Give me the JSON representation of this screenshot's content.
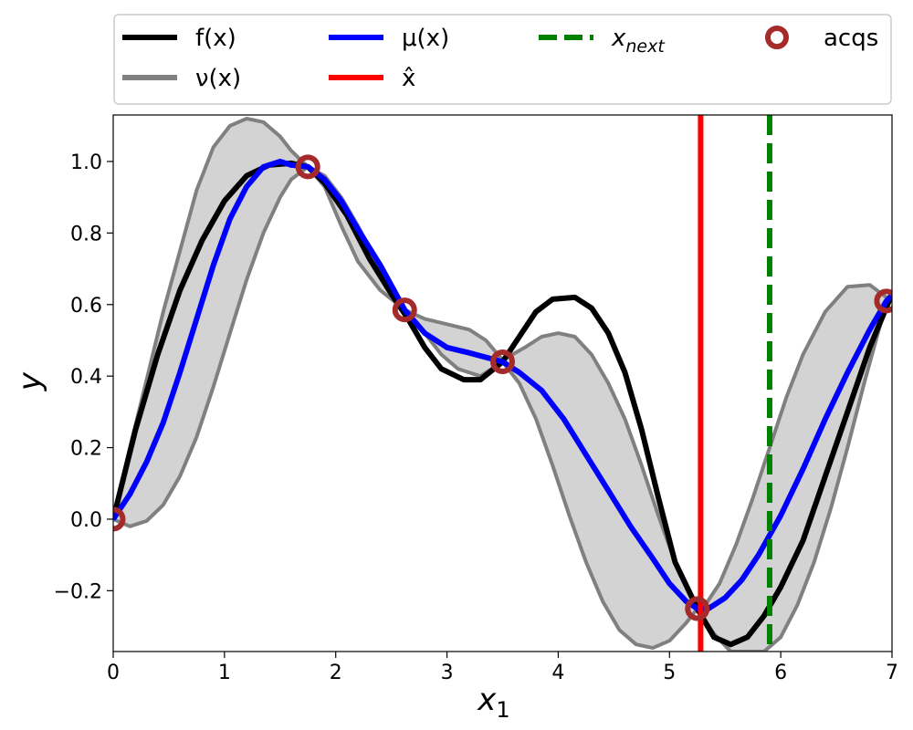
{
  "chart_data": {
    "type": "line",
    "xlabel": "x",
    "xlabel_sub": "1",
    "ylabel": "y",
    "xlim": [
      0,
      7
    ],
    "ylim": [
      -0.37,
      1.13
    ],
    "x_ticks": [
      0,
      1,
      2,
      3,
      4,
      5,
      6,
      7
    ],
    "x_tick_labels": [
      "0",
      "1",
      "2",
      "3",
      "4",
      "5",
      "6",
      "7"
    ],
    "y_ticks": [
      -0.2,
      0.0,
      0.2,
      0.4,
      0.6,
      0.8,
      1.0
    ],
    "y_tick_labels": [
      "−0.2",
      "0.0",
      "0.2",
      "0.4",
      "0.6",
      "0.8",
      "1.0"
    ],
    "grid": false,
    "legend_position": "top",
    "legend": [
      {
        "label": "f(x)",
        "style": "line",
        "color": "#000000"
      },
      {
        "label": "μ(x)",
        "style": "line",
        "color": "#0000ff"
      },
      {
        "label": "x",
        "label_sub": "next",
        "style": "dashed",
        "color": "#008000"
      },
      {
        "label": "acqs",
        "style": "ring",
        "color": "#a52a2a"
      },
      {
        "label": "ν(x)",
        "style": "line",
        "color": "#808080"
      },
      {
        "label": "x̂",
        "style": "line",
        "color": "#ff0000"
      }
    ],
    "series": [
      {
        "name": "f(x)",
        "color": "#000000",
        "x": [
          0,
          0.2,
          0.4,
          0.6,
          0.8,
          1.0,
          1.2,
          1.4,
          1.6,
          1.75,
          1.9,
          2.1,
          2.3,
          2.5,
          2.65,
          2.8,
          2.95,
          3.15,
          3.3,
          3.5,
          3.65,
          3.8,
          3.95,
          4.15,
          4.3,
          4.45,
          4.6,
          4.75,
          4.9,
          5.05,
          5.25,
          5.4,
          5.55,
          5.7,
          5.85,
          6.0,
          6.2,
          6.4,
          6.6,
          6.8,
          7.0
        ],
        "y": [
          0.0,
          0.25,
          0.46,
          0.64,
          0.78,
          0.89,
          0.96,
          0.99,
          0.995,
          0.985,
          0.94,
          0.85,
          0.73,
          0.63,
          0.56,
          0.48,
          0.42,
          0.39,
          0.39,
          0.44,
          0.51,
          0.58,
          0.615,
          0.62,
          0.59,
          0.52,
          0.41,
          0.25,
          0.06,
          -0.12,
          -0.25,
          -0.33,
          -0.35,
          -0.33,
          -0.27,
          -0.19,
          -0.06,
          0.12,
          0.3,
          0.48,
          0.63
        ]
      },
      {
        "name": "μ(x)",
        "color": "#0000ff",
        "x": [
          0,
          0.15,
          0.3,
          0.45,
          0.6,
          0.75,
          0.9,
          1.05,
          1.2,
          1.35,
          1.5,
          1.6,
          1.75,
          1.9,
          2.05,
          2.2,
          2.4,
          2.62,
          2.8,
          3.0,
          3.2,
          3.5,
          3.65,
          3.85,
          4.05,
          4.25,
          4.45,
          4.65,
          4.85,
          5.0,
          5.15,
          5.25,
          5.35,
          5.5,
          5.65,
          5.8,
          6.0,
          6.2,
          6.4,
          6.6,
          6.8,
          6.95,
          7.0
        ],
        "y": [
          0.0,
          0.07,
          0.16,
          0.27,
          0.41,
          0.56,
          0.71,
          0.84,
          0.93,
          0.985,
          1.0,
          0.99,
          0.985,
          0.95,
          0.89,
          0.81,
          0.71,
          0.585,
          0.52,
          0.48,
          0.465,
          0.44,
          0.41,
          0.36,
          0.28,
          0.18,
          0.08,
          -0.02,
          -0.11,
          -0.18,
          -0.23,
          -0.25,
          -0.25,
          -0.22,
          -0.17,
          -0.1,
          0.01,
          0.14,
          0.28,
          0.41,
          0.53,
          0.61,
          0.625
        ]
      },
      {
        "name": "ν(x) upper",
        "color": "#808080",
        "x": [
          0,
          0.15,
          0.3,
          0.45,
          0.6,
          0.75,
          0.9,
          1.05,
          1.2,
          1.35,
          1.5,
          1.6,
          1.75,
          1.9,
          2.05,
          2.2,
          2.4,
          2.62,
          2.8,
          3.0,
          3.2,
          3.35,
          3.5,
          3.7,
          3.85,
          4.0,
          4.15,
          4.3,
          4.45,
          4.6,
          4.75,
          4.9,
          5.05,
          5.2,
          5.3,
          5.45,
          5.6,
          5.75,
          5.9,
          6.05,
          6.2,
          6.4,
          6.6,
          6.8,
          6.95,
          7.0
        ],
        "y": [
          0.0,
          0.2,
          0.39,
          0.58,
          0.75,
          0.92,
          1.04,
          1.1,
          1.12,
          1.11,
          1.07,
          1.03,
          0.985,
          0.96,
          0.9,
          0.82,
          0.7,
          0.585,
          0.56,
          0.545,
          0.53,
          0.5,
          0.445,
          0.48,
          0.51,
          0.52,
          0.51,
          0.46,
          0.38,
          0.28,
          0.15,
          0.01,
          -0.12,
          -0.22,
          -0.25,
          -0.18,
          -0.07,
          0.06,
          0.2,
          0.34,
          0.46,
          0.58,
          0.65,
          0.655,
          0.62,
          0.625
        ]
      },
      {
        "name": "ν(x) lower",
        "color": "#808080",
        "x": [
          0,
          0.15,
          0.3,
          0.45,
          0.6,
          0.75,
          0.9,
          1.05,
          1.2,
          1.35,
          1.5,
          1.6,
          1.75,
          1.9,
          2.05,
          2.2,
          2.4,
          2.62,
          2.8,
          2.95,
          3.1,
          3.3,
          3.5,
          3.65,
          3.8,
          3.95,
          4.1,
          4.25,
          4.4,
          4.55,
          4.7,
          4.85,
          5.0,
          5.15,
          5.25,
          5.4,
          5.55,
          5.7,
          5.85,
          6.0,
          6.15,
          6.3,
          6.45,
          6.6,
          6.75,
          6.9,
          7.0
        ],
        "y": [
          0.0,
          -0.02,
          -0.005,
          0.04,
          0.12,
          0.23,
          0.37,
          0.52,
          0.67,
          0.8,
          0.9,
          0.95,
          0.985,
          0.93,
          0.82,
          0.72,
          0.64,
          0.585,
          0.52,
          0.46,
          0.42,
          0.4,
          0.44,
          0.38,
          0.28,
          0.15,
          0.01,
          -0.12,
          -0.23,
          -0.31,
          -0.35,
          -0.36,
          -0.34,
          -0.29,
          -0.25,
          -0.32,
          -0.37,
          -0.37,
          -0.37,
          -0.33,
          -0.24,
          -0.12,
          0.03,
          0.2,
          0.38,
          0.55,
          0.625
        ]
      }
    ],
    "acquisitions": {
      "name": "acqs",
      "color": "#a52a2a",
      "x": [
        0.0,
        1.75,
        2.62,
        3.5,
        5.25,
        6.95
      ],
      "y": [
        0.0,
        0.985,
        0.585,
        0.44,
        -0.25,
        0.61
      ]
    },
    "vlines": [
      {
        "name": "x̂",
        "x": 5.28,
        "color": "#ff0000",
        "dashed": false
      },
      {
        "name": "x_next",
        "x": 5.9,
        "color": "#008000",
        "dashed": true
      }
    ],
    "band_fill_color": "#d3d3d3"
  }
}
